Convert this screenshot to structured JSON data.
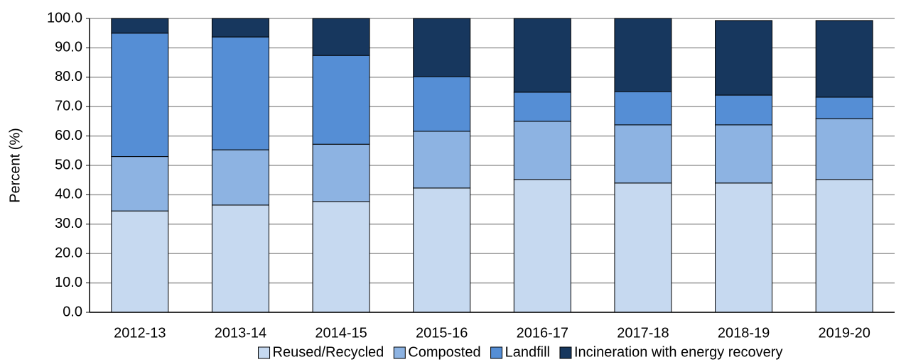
{
  "chart_data": {
    "type": "stacked_bar",
    "y_label": "Percent (%)",
    "categories": [
      "2012-13",
      "2013-14",
      "2014-15",
      "2015-16",
      "2016-17",
      "2017-18",
      "2018-19",
      "2019-20"
    ],
    "series": [
      {
        "name": "Reused/Recycled",
        "color": "#c6d9f0",
        "values": [
          34.5,
          36.5,
          37.7,
          42.3,
          45.2,
          44.0,
          44.0,
          45.2
        ]
      },
      {
        "name": "Composted",
        "color": "#8db3e2",
        "values": [
          18.5,
          18.8,
          19.5,
          19.3,
          19.8,
          19.8,
          19.8,
          20.7
        ]
      },
      {
        "name": "Landfill",
        "color": "#558ed5",
        "values": [
          42.0,
          38.4,
          30.2,
          18.6,
          9.9,
          11.3,
          10.1,
          7.3
        ]
      },
      {
        "name": "Incineration with energy recovery",
        "color": "#17375e",
        "values": [
          5.0,
          6.3,
          12.6,
          19.8,
          25.1,
          24.9,
          25.4,
          26.1
        ]
      }
    ],
    "ylim": [
      0,
      100
    ],
    "yticks": [
      {
        "value": 0,
        "label": "0.0"
      },
      {
        "value": 10,
        "label": "10.0"
      },
      {
        "value": 20,
        "label": "20.0"
      },
      {
        "value": 30,
        "label": "30.0"
      },
      {
        "value": 40,
        "label": "40.0"
      },
      {
        "value": 50,
        "label": "50.0"
      },
      {
        "value": 60,
        "label": "60.0"
      },
      {
        "value": 70,
        "label": "70.0"
      },
      {
        "value": 80,
        "label": "80.0"
      },
      {
        "value": 90,
        "label": "90.0"
      },
      {
        "value": 100,
        "label": "100.0"
      }
    ],
    "grid": true,
    "legend": "bottom"
  }
}
